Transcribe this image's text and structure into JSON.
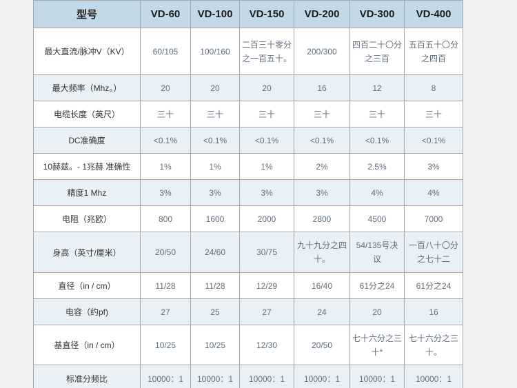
{
  "table": {
    "header": {
      "model_label": "型号",
      "columns": [
        "VD-60",
        "VD-100",
        "VD-150",
        "VD-200",
        "VD-300",
        "VD-400"
      ]
    },
    "rows": [
      {
        "label": "最大直流/脉冲V（KV）",
        "values": [
          "60/105",
          "100/160",
          "二百三十零分之一百五十。",
          "200/300",
          "四百二十〇分之三百",
          "五百五十〇分之四百"
        ]
      },
      {
        "label": "最大频率（Mhz。）",
        "values": [
          "20",
          "20",
          "20",
          "16",
          "12",
          "8"
        ]
      },
      {
        "label": "电缆长度（英尺）",
        "values": [
          "三十",
          "三十",
          "三十",
          "三十",
          "三十",
          "三十"
        ]
      },
      {
        "label": "DC准确度",
        "values": [
          "<0.1%",
          "<0.1%",
          "<0.1%",
          "<0.1%",
          "<0.1%",
          "<0.1%"
        ]
      },
      {
        "label": "10赫兹。- 1兆赫 准确性",
        "values": [
          "1%",
          "1%",
          "1%",
          "2%",
          "2.5%",
          "3%"
        ]
      },
      {
        "label": "精度1 Mhz",
        "values": [
          "3%",
          "3%",
          "3%",
          "3%",
          "4%",
          "4%"
        ]
      },
      {
        "label": "电阻（兆欧）",
        "values": [
          "800",
          "1600",
          "2000",
          "2800",
          "4500",
          "7000"
        ]
      },
      {
        "label": "身高（英寸/厘米）",
        "values": [
          "20/50",
          "24/60",
          "30/75",
          "九十九分之四十。",
          "54/135号决议",
          "一百八十〇分之七十二"
        ]
      },
      {
        "label": "直径（in / cm）",
        "values": [
          "11/28",
          "11/28",
          "12/29",
          "16/40",
          "61分之24",
          "61分之24"
        ]
      },
      {
        "label": "电容（约pf)",
        "values": [
          "27",
          "25",
          "27",
          "24",
          "20",
          "16"
        ]
      },
      {
        "label": "基直径（in / cm）",
        "values": [
          "10/25",
          "10/25",
          "12/30",
          "20/50",
          "七十六分之三十*",
          "七十六分之三十。"
        ]
      },
      {
        "label": "标准分频比",
        "values": [
          "10000：1",
          "10000：1",
          "10000：1",
          "10000：1",
          "10000：1",
          "10000：1"
        ]
      }
    ],
    "colors": {
      "page_background": "#f1f1f1",
      "header_background": "#c3d9e7",
      "alt_row_background": "#e9f1f7",
      "border": "#a5a5a5",
      "label_text": "#333333",
      "value_text": "#5f6e7d"
    }
  }
}
